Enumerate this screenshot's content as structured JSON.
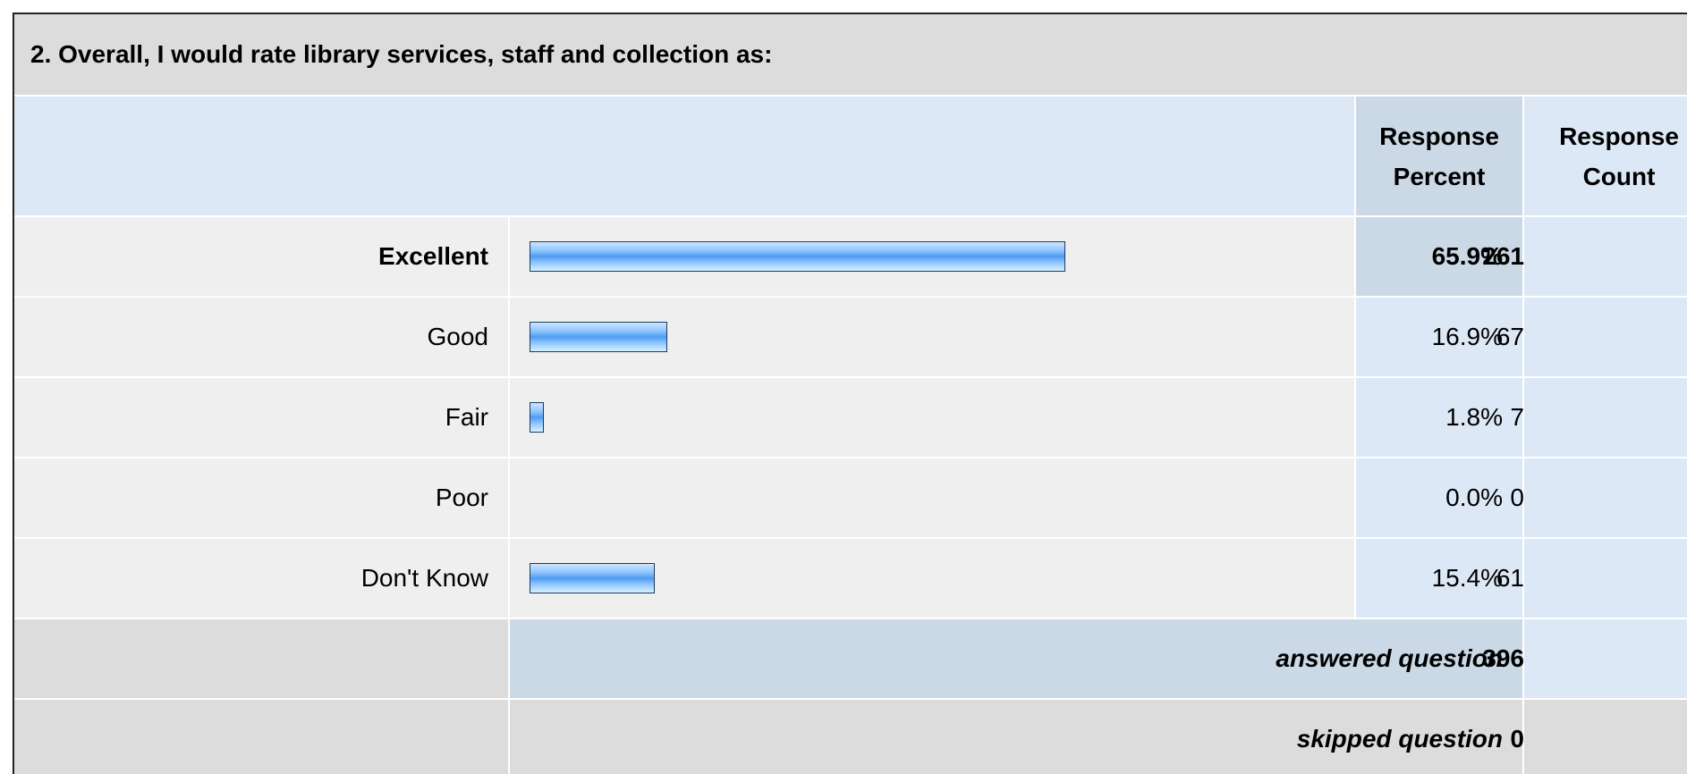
{
  "question": "2. Overall, I would rate library services, staff and collection as:",
  "headers": {
    "percent": "Response Percent",
    "count": "Response Count"
  },
  "rows": [
    {
      "label": "Excellent",
      "percent": 65.9,
      "percent_label": "65.9%",
      "count": 261
    },
    {
      "label": "Good",
      "percent": 16.9,
      "percent_label": "16.9%",
      "count": 67
    },
    {
      "label": "Fair",
      "percent": 1.8,
      "percent_label": "1.8%",
      "count": 7
    },
    {
      "label": "Poor",
      "percent": 0.0,
      "percent_label": "0.0%",
      "count": 0
    },
    {
      "label": "Don't Know",
      "percent": 15.4,
      "percent_label": "15.4%",
      "count": 61
    }
  ],
  "footer": {
    "answered_label": "answered question",
    "answered": 396,
    "skipped_label": "skipped question",
    "skipped": 0
  }
}
